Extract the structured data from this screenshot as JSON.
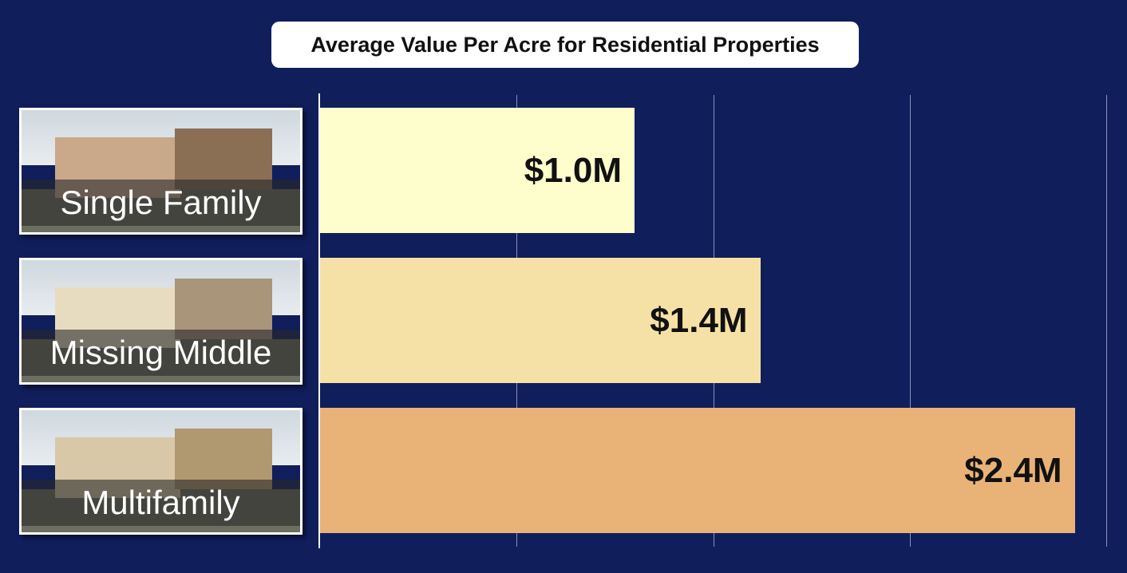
{
  "chart_data": {
    "type": "bar",
    "orientation": "horizontal",
    "title": "Average Value Per Acre for Residential Properties",
    "categories": [
      "Single Family",
      "Missing Middle",
      "Multifamily"
    ],
    "values": [
      1.0,
      1.4,
      2.4
    ],
    "value_labels": [
      "$1.0M",
      "$1.4M",
      "$2.4M"
    ],
    "unit": "million USD per acre",
    "xlim": [
      0,
      2.5
    ],
    "grid": true,
    "colors": [
      "#fefdcc",
      "#f5e1a5",
      "#e9b378"
    ]
  }
}
